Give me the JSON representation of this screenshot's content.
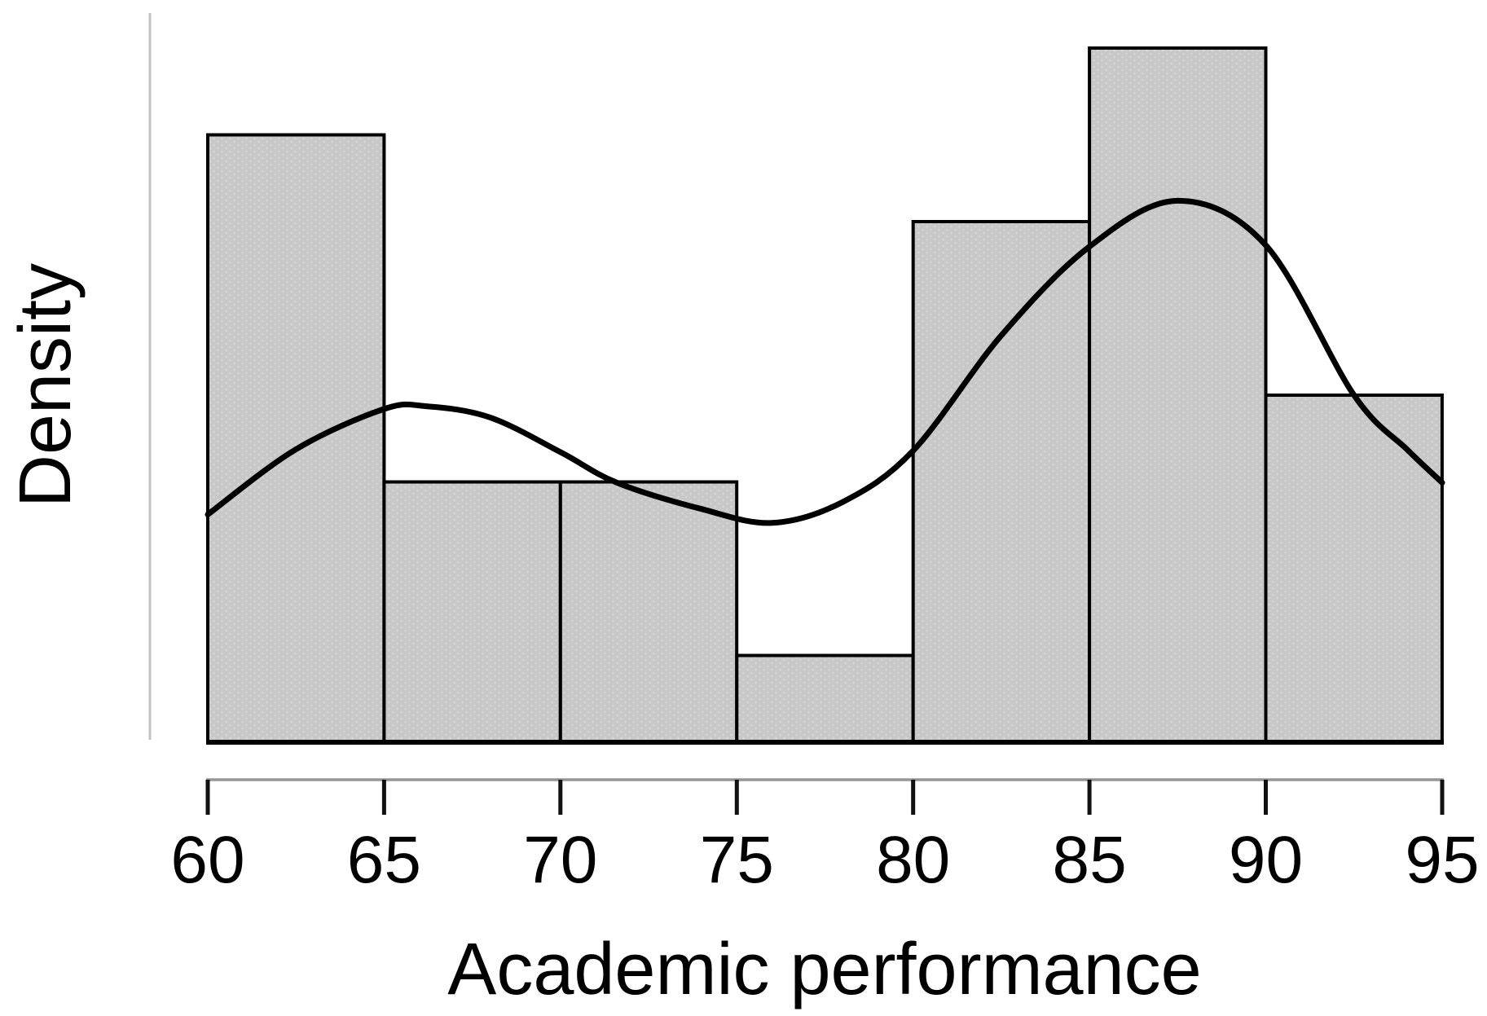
{
  "page": {
    "background": "#ffffff",
    "description": "Histogram of academic performance with overlaid kernel density curve"
  },
  "chart_data": {
    "type": "bar",
    "subtype": "histogram_with_density_curve",
    "title": "",
    "xlabel": "Academic performance",
    "ylabel": "Density",
    "xlim": [
      60,
      95
    ],
    "x_ticks": [
      60,
      65,
      70,
      75,
      80,
      85,
      90,
      95
    ],
    "y_ticks_visible": false,
    "grid": false,
    "legend": "none",
    "bin_width": 5,
    "total_n": 32,
    "categories": [
      "60-65",
      "65-70",
      "70-75",
      "75-80",
      "80-85",
      "85-90",
      "90-95"
    ],
    "counts": [
      7,
      3,
      3,
      1,
      6,
      8,
      4
    ],
    "values": [
      0.04375,
      0.01875,
      0.01875,
      0.00625,
      0.0375,
      0.05,
      0.025
    ],
    "bins": [
      {
        "range": [
          60,
          65
        ],
        "count": 7,
        "density": 0.04375
      },
      {
        "range": [
          65,
          70
        ],
        "count": 3,
        "density": 0.01875
      },
      {
        "range": [
          70,
          75
        ],
        "count": 3,
        "density": 0.01875
      },
      {
        "range": [
          75,
          80
        ],
        "count": 1,
        "density": 0.00625
      },
      {
        "range": [
          80,
          85
        ],
        "count": 6,
        "density": 0.0375
      },
      {
        "range": [
          85,
          90
        ],
        "count": 8,
        "density": 0.05
      },
      {
        "range": [
          90,
          95
        ],
        "count": 4,
        "density": 0.025
      }
    ],
    "density_curve": [
      [
        60.0,
        0.0164
      ],
      [
        62.5,
        0.0211
      ],
      [
        65.0,
        0.024
      ],
      [
        66.2,
        0.0242
      ],
      [
        68.0,
        0.0234
      ],
      [
        70.0,
        0.0209
      ],
      [
        71.6,
        0.0187
      ],
      [
        74.0,
        0.0168
      ],
      [
        76.0,
        0.0158
      ],
      [
        78.0,
        0.0173
      ],
      [
        80.0,
        0.021
      ],
      [
        82.5,
        0.0293
      ],
      [
        85.0,
        0.0357
      ],
      [
        87.5,
        0.039
      ],
      [
        90.0,
        0.0358
      ],
      [
        92.5,
        0.025
      ],
      [
        94.0,
        0.0211
      ],
      [
        95.0,
        0.0187
      ]
    ],
    "colors": {
      "bar_fill": "#c8c8c8",
      "bar_dot": "#d6d6d6",
      "bar_border": "#000000",
      "baseline": "#000000",
      "curve": "#000000",
      "x_axis_line": "#969696",
      "y_axis_line": "#c3c3c3",
      "tick": "#111111",
      "text": "#000000"
    }
  }
}
